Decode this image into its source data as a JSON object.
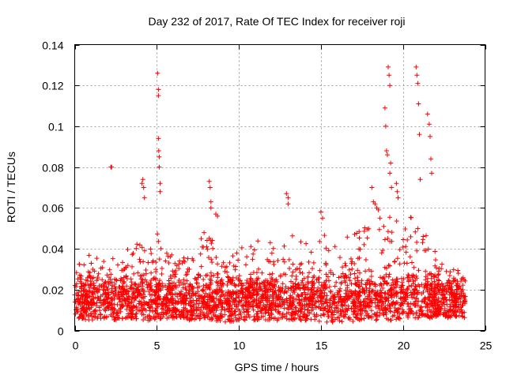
{
  "chart_data": {
    "type": "scatter",
    "title": "Day 232 of 2017, Rate Of TEC Index for receiver roji",
    "xlabel": "GPS time / hours",
    "ylabel": "ROTI / TECUs",
    "xlim": [
      0,
      25
    ],
    "ylim": [
      0,
      0.14
    ],
    "x_ticks": [
      0,
      5,
      10,
      15,
      20,
      25
    ],
    "x_tick_labels": [
      "0",
      "5",
      "10",
      "15",
      "20",
      "25"
    ],
    "y_ticks": [
      0,
      0.02,
      0.04,
      0.06,
      0.08,
      0.1,
      0.12,
      0.14
    ],
    "y_tick_labels": [
      "0",
      "0.02",
      "0.04",
      "0.06",
      "0.08",
      "0.1",
      "0.12",
      "0.14"
    ],
    "grid": true,
    "marker": "plus",
    "color": "#ff0000",
    "envelope": {
      "x": [
        0,
        0.5,
        1,
        1.5,
        2,
        2.5,
        3,
        3.5,
        4,
        4.5,
        5,
        5.5,
        6,
        6.5,
        7,
        7.5,
        8,
        8.5,
        9,
        9.5,
        10,
        10.5,
        11,
        11.5,
        12,
        12.5,
        13,
        13.5,
        14,
        14.5,
        15,
        15.5,
        16,
        16.5,
        17,
        17.5,
        18,
        18.5,
        19,
        19.5,
        20,
        20.5,
        21,
        21.5,
        22,
        22.5,
        23,
        23.5,
        23.8
      ],
      "typical_max": [
        0.032,
        0.034,
        0.042,
        0.04,
        0.036,
        0.038,
        0.04,
        0.042,
        0.045,
        0.04,
        0.05,
        0.044,
        0.036,
        0.034,
        0.04,
        0.044,
        0.05,
        0.045,
        0.038,
        0.036,
        0.04,
        0.042,
        0.044,
        0.046,
        0.044,
        0.042,
        0.048,
        0.046,
        0.044,
        0.046,
        0.05,
        0.048,
        0.046,
        0.05,
        0.052,
        0.05,
        0.054,
        0.056,
        0.058,
        0.056,
        0.054,
        0.056,
        0.05,
        0.046,
        0.04,
        0.034,
        0.03,
        0.03,
        0.03
      ],
      "typical_min": [
        0.006,
        0.005,
        0.005,
        0.006,
        0.005,
        0.005,
        0.006,
        0.006,
        0.005,
        0.005,
        0.005,
        0.005,
        0.006,
        0.006,
        0.005,
        0.005,
        0.005,
        0.005,
        0.004,
        0.004,
        0.005,
        0.005,
        0.005,
        0.005,
        0.005,
        0.005,
        0.005,
        0.005,
        0.005,
        0.005,
        0.004,
        0.004,
        0.004,
        0.004,
        0.004,
        0.005,
        0.005,
        0.005,
        0.005,
        0.005,
        0.006,
        0.006,
        0.006,
        0.006,
        0.006,
        0.006,
        0.006,
        0.006,
        0.006
      ]
    },
    "outliers": {
      "x": [
        2.2,
        2.25,
        4.1,
        4.15,
        4.2,
        4.25,
        5.05,
        5.1,
        5.1,
        5.1,
        5.12,
        5.15,
        5.15,
        5.2,
        5.2,
        8.2,
        8.25,
        8.3,
        8.3,
        8.6,
        8.7,
        12.9,
        13.0,
        13.0,
        15.0,
        15.1,
        18.1,
        18.2,
        18.3,
        18.4,
        18.5,
        18.6,
        18.9,
        18.95,
        19.0,
        19.05,
        19.1,
        19.15,
        19.2,
        19.2,
        19.25,
        19.3,
        19.6,
        19.65,
        19.7,
        20.8,
        20.85,
        20.9,
        20.95,
        21.0,
        21.05,
        21.5,
        21.6,
        21.65,
        21.7,
        21.75
      ],
      "y": [
        0.08,
        0.08,
        0.072,
        0.074,
        0.07,
        0.065,
        0.126,
        0.118,
        0.115,
        0.094,
        0.088,
        0.085,
        0.08,
        0.072,
        0.068,
        0.073,
        0.07,
        0.063,
        0.06,
        0.057,
        0.056,
        0.067,
        0.065,
        0.062,
        0.058,
        0.055,
        0.07,
        0.063,
        0.062,
        0.06,
        0.059,
        0.055,
        0.109,
        0.1,
        0.088,
        0.086,
        0.129,
        0.125,
        0.12,
        0.077,
        0.082,
        0.07,
        0.072,
        0.068,
        0.065,
        0.129,
        0.125,
        0.121,
        0.111,
        0.096,
        0.074,
        0.106,
        0.101,
        0.095,
        0.084,
        0.077
      ]
    }
  }
}
